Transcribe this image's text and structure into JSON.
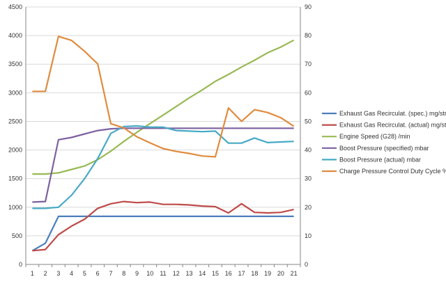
{
  "chart_data": {
    "type": "line",
    "title": "",
    "xlabel": "",
    "ylabel": "",
    "categories": [
      "1",
      "2",
      "3",
      "4",
      "5",
      "6",
      "7",
      "8",
      "9",
      "10",
      "11",
      "12",
      "13",
      "14",
      "15",
      "16",
      "17",
      "18",
      "19",
      "20",
      "21"
    ],
    "y_left": {
      "range": [
        0,
        4500
      ],
      "ticks": [
        "0",
        "500",
        "1000",
        "1500",
        "2000",
        "2500",
        "3000",
        "3500",
        "4000",
        "4500"
      ]
    },
    "y_right": {
      "range": [
        0,
        90
      ],
      "ticks": [
        "0",
        "10",
        "20",
        "30",
        "40",
        "50",
        "60",
        "70",
        "80",
        "90"
      ]
    },
    "grid": "horizontal",
    "legend_position": "right",
    "series": [
      {
        "name": "Exhaust Gas Recirculat. (spec.)  mg/str",
        "axis": "left",
        "color": "#4a7ebb",
        "values": [
          240,
          370,
          840,
          840,
          840,
          840,
          840,
          840,
          840,
          840,
          840,
          840,
          840,
          840,
          840,
          840,
          840,
          840,
          840,
          840,
          840
        ]
      },
      {
        "name": "Exhaust Gas Recirculat. (actual)  mg/str",
        "axis": "left",
        "color": "#be4b48",
        "values": [
          240,
          260,
          520,
          670,
          790,
          980,
          1060,
          1100,
          1080,
          1090,
          1050,
          1050,
          1040,
          1020,
          1010,
          900,
          1060,
          910,
          900,
          910,
          960
        ]
      },
      {
        "name": "Engine Speed (G28)  /min",
        "axis": "left",
        "color": "#98b954",
        "values": [
          1580,
          1580,
          1600,
          1660,
          1720,
          1830,
          1980,
          2150,
          2310,
          2460,
          2610,
          2760,
          2910,
          3050,
          3200,
          3320,
          3450,
          3570,
          3700,
          3800,
          3920
        ]
      },
      {
        "name": "Boost Pressure (specified)  mbar",
        "axis": "left",
        "color": "#7d60a0",
        "values": [
          1090,
          1100,
          2180,
          2220,
          2280,
          2340,
          2370,
          2380,
          2380,
          2380,
          2380,
          2380,
          2380,
          2380,
          2380,
          2380,
          2380,
          2380,
          2380,
          2380,
          2380
        ]
      },
      {
        "name": "Boost Pressure (actual)  mbar",
        "axis": "left",
        "color": "#46aac5",
        "values": [
          980,
          980,
          1000,
          1210,
          1500,
          1850,
          2290,
          2410,
          2420,
          2400,
          2400,
          2340,
          2330,
          2320,
          2330,
          2120,
          2120,
          2210,
          2130,
          2140,
          2150
        ]
      },
      {
        "name": "Charge Pressure Control Duty Cycle  %",
        "axis": "right",
        "color": "#e08b3e",
        "values": [
          60.5,
          60.5,
          79.7,
          78.3,
          74.5,
          70.1,
          49.2,
          47.7,
          44.6,
          42.5,
          40.5,
          39.5,
          38.8,
          37.9,
          37.6,
          54.7,
          50.0,
          54.1,
          53.1,
          51.3,
          48.3
        ]
      }
    ]
  }
}
